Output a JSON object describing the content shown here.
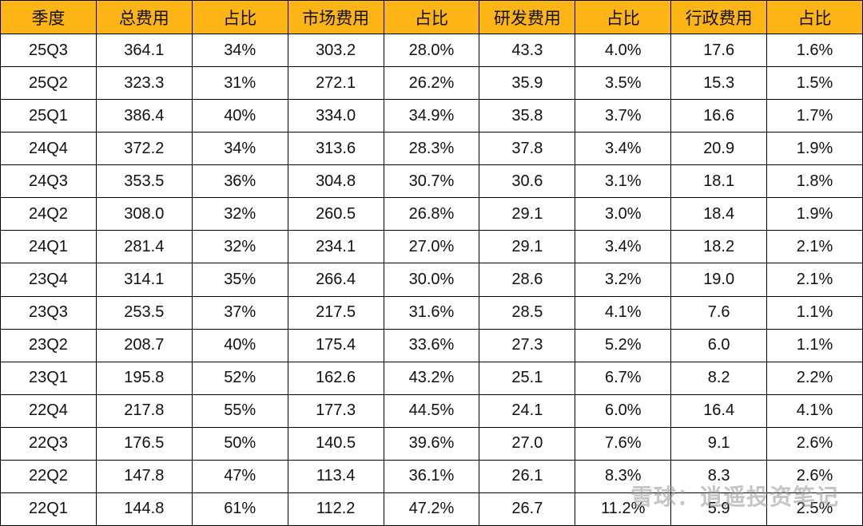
{
  "table": {
    "header": [
      "季度",
      "总费用",
      "占比",
      "市场费用",
      "占比",
      "研发费用",
      "占比",
      "行政费用",
      "占比"
    ],
    "rows": [
      [
        "25Q3",
        "364.1",
        "34%",
        "303.2",
        "28.0%",
        "43.3",
        "4.0%",
        "17.6",
        "1.6%"
      ],
      [
        "25Q2",
        "323.3",
        "31%",
        "272.1",
        "26.2%",
        "35.9",
        "3.5%",
        "15.3",
        "1.5%"
      ],
      [
        "25Q1",
        "386.4",
        "40%",
        "334.0",
        "34.9%",
        "35.8",
        "3.7%",
        "16.6",
        "1.7%"
      ],
      [
        "24Q4",
        "372.2",
        "34%",
        "313.6",
        "28.3%",
        "37.8",
        "3.4%",
        "20.9",
        "1.9%"
      ],
      [
        "24Q3",
        "353.5",
        "36%",
        "304.8",
        "30.7%",
        "30.6",
        "3.1%",
        "18.1",
        "1.8%"
      ],
      [
        "24Q2",
        "308.0",
        "32%",
        "260.5",
        "26.8%",
        "29.1",
        "3.0%",
        "18.4",
        "1.9%"
      ],
      [
        "24Q1",
        "281.4",
        "32%",
        "234.1",
        "27.0%",
        "29.1",
        "3.4%",
        "18.2",
        "2.1%"
      ],
      [
        "23Q4",
        "314.1",
        "35%",
        "266.4",
        "30.0%",
        "28.6",
        "3.2%",
        "19.0",
        "2.1%"
      ],
      [
        "23Q3",
        "253.5",
        "37%",
        "217.5",
        "31.6%",
        "28.5",
        "4.1%",
        "7.6",
        "1.1%"
      ],
      [
        "23Q2",
        "208.7",
        "40%",
        "175.4",
        "33.6%",
        "27.3",
        "5.2%",
        "6.0",
        "1.1%"
      ],
      [
        "23Q1",
        "195.8",
        "52%",
        "162.6",
        "43.2%",
        "25.1",
        "6.7%",
        "8.2",
        "2.2%"
      ],
      [
        "22Q4",
        "217.8",
        "55%",
        "177.3",
        "44.5%",
        "24.1",
        "6.0%",
        "16.4",
        "4.1%"
      ],
      [
        "22Q3",
        "176.5",
        "50%",
        "140.5",
        "39.6%",
        "27.0",
        "7.6%",
        "9.1",
        "2.6%"
      ],
      [
        "22Q2",
        "147.8",
        "47%",
        "113.4",
        "36.1%",
        "26.1",
        "8.3%",
        "8.3",
        "2.6%"
      ],
      [
        "22Q1",
        "144.8",
        "61%",
        "112.2",
        "47.2%",
        "26.7",
        "11.2%",
        "5.9",
        "2.5%"
      ]
    ]
  },
  "watermark": "雪球：逍遥投资笔记"
}
